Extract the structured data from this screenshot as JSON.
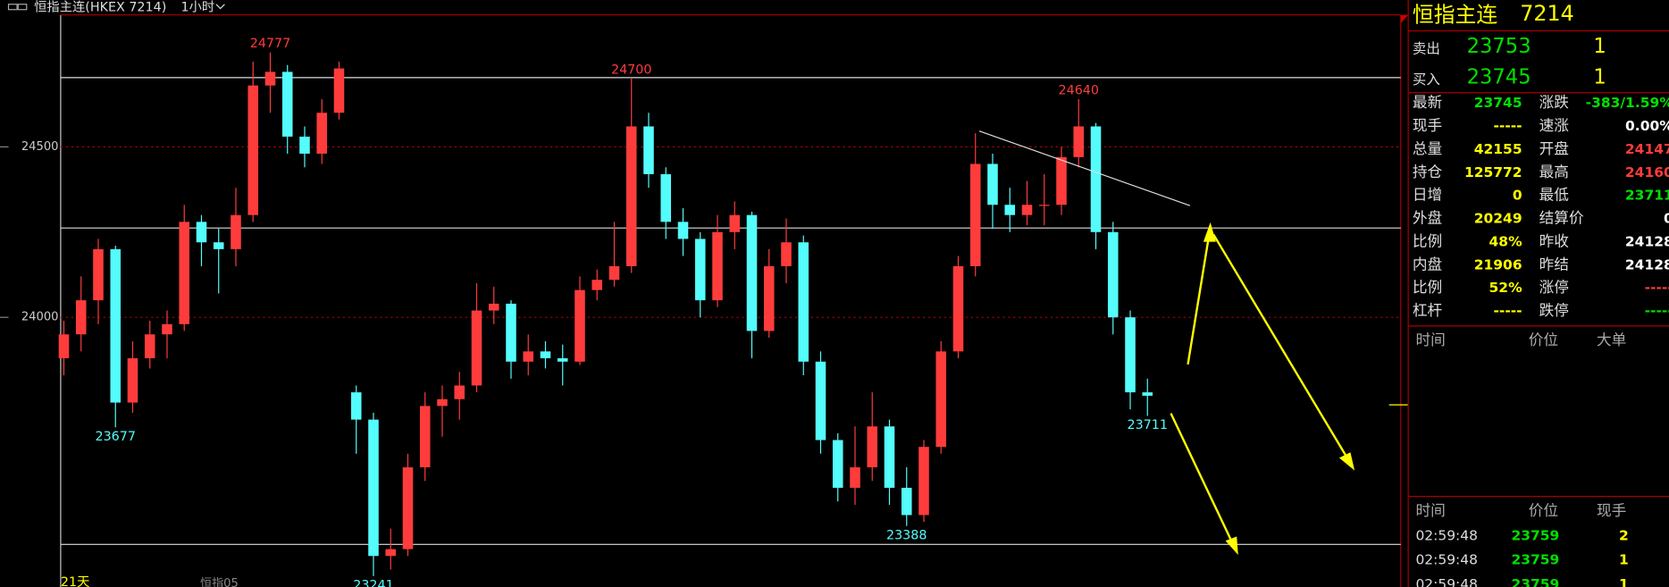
{
  "header": {
    "title": "恒指主连(HKEX 7214)",
    "period": "1小时"
  },
  "chart_data": {
    "type": "candlestick",
    "up_color": "#ff3c3c",
    "down_color": "#54fcfc",
    "ylim": [
      23209,
      24887
    ],
    "yticks": [
      24000,
      24500
    ],
    "grid": true,
    "open": [
      23880,
      23950,
      24050,
      24200,
      23750,
      23880,
      23950,
      23980,
      24280,
      24220,
      24200,
      24300,
      24680,
      24720,
      24530,
      24480,
      24600,
      23780,
      23700,
      23300,
      23320,
      23560,
      23740,
      23760,
      23800,
      24020,
      24040,
      23870,
      23900,
      23880,
      23870,
      24080,
      24110,
      24150,
      24560,
      24420,
      24280,
      24230,
      24050,
      24250,
      24300,
      23960,
      24150,
      24220,
      23870,
      23640,
      23500,
      23560,
      23680,
      23500,
      23420,
      23620,
      23900,
      24150,
      24450,
      24330,
      24300,
      24330,
      24330,
      24470,
      24560,
      24250,
      24000,
      23780
    ],
    "high": [
      23990,
      24120,
      24230,
      24210,
      23930,
      23990,
      24020,
      24330,
      24300,
      24260,
      24380,
      24750,
      24777,
      24740,
      24560,
      24640,
      24750,
      23800,
      23720,
      23380,
      23600,
      23780,
      23800,
      23840,
      24100,
      24090,
      24050,
      23950,
      23930,
      23920,
      24120,
      24140,
      24280,
      24700,
      24600,
      24440,
      24320,
      24250,
      24300,
      24340,
      24310,
      24200,
      24290,
      24240,
      23900,
      23660,
      23680,
      23780,
      23700,
      23560,
      23640,
      23930,
      24180,
      24540,
      24480,
      24380,
      24400,
      24420,
      24500,
      24640,
      24570,
      24280,
      24020,
      23820
    ],
    "low": [
      23830,
      23900,
      23980,
      23677,
      23720,
      23850,
      23880,
      23960,
      24150,
      24070,
      24150,
      24280,
      24600,
      24480,
      24440,
      24450,
      24580,
      23600,
      23241,
      23260,
      23300,
      23520,
      23650,
      23700,
      23780,
      23980,
      23820,
      23830,
      23850,
      23800,
      23860,
      24050,
      24090,
      24130,
      24380,
      24230,
      24180,
      24000,
      24030,
      24200,
      23880,
      23940,
      24100,
      23830,
      23600,
      23460,
      23450,
      23520,
      23450,
      23388,
      23400,
      23600,
      23880,
      24120,
      24260,
      24250,
      24270,
      24270,
      24300,
      24440,
      24200,
      23950,
      23730,
      23711
    ],
    "close": [
      23950,
      24050,
      24200,
      23750,
      23880,
      23950,
      23980,
      24280,
      24220,
      24200,
      24300,
      24680,
      24720,
      24530,
      24480,
      24600,
      24730,
      23700,
      23300,
      23320,
      23560,
      23740,
      23760,
      23800,
      24020,
      24040,
      23870,
      23900,
      23880,
      23870,
      24080,
      24110,
      24150,
      24560,
      24420,
      24280,
      24230,
      24050,
      24250,
      24300,
      23960,
      24150,
      24220,
      23870,
      23640,
      23500,
      23560,
      23680,
      23500,
      23420,
      23620,
      23900,
      24150,
      24450,
      24330,
      24300,
      24330,
      24330,
      24470,
      24560,
      24250,
      24000,
      23780,
      23770
    ],
    "hlines": [
      24703,
      24262,
      23334
    ],
    "annotations": [
      {
        "value": 24777,
        "index": 12,
        "position": "above"
      },
      {
        "value": 24700,
        "index": 33,
        "position": "above"
      },
      {
        "value": 24640,
        "index": 59,
        "position": "above"
      },
      {
        "value": 23677,
        "index": 3,
        "position": "below"
      },
      {
        "value": 23241,
        "index": 18,
        "position": "below"
      },
      {
        "value": 23388,
        "index": 49,
        "position": "below"
      },
      {
        "value": 23711,
        "index": 63,
        "position": "below"
      }
    ],
    "footer_left": "21天",
    "footer_mid": "恒指05"
  },
  "quote_panel": {
    "name": "恒指主连",
    "code": "7214",
    "ask": {
      "label": "卖出",
      "price": "23753",
      "size": "1"
    },
    "bid": {
      "label": "买入",
      "price": "23745",
      "size": "1"
    },
    "stats": [
      [
        {
          "label": "最新",
          "value": "23745",
          "color": "#00e000"
        },
        {
          "label": "涨跌",
          "value": "-383/1.59%",
          "color": "#00e000"
        }
      ],
      [
        {
          "label": "现手",
          "value": "-----",
          "color": "#ffff00"
        },
        {
          "label": "速涨",
          "value": "0.00%",
          "color": "#ffffff"
        }
      ],
      [
        {
          "label": "总量",
          "value": "42155",
          "color": "#ffff00"
        },
        {
          "label": "开盘",
          "value": "24147",
          "color": "#ff3c3c"
        }
      ],
      [
        {
          "label": "持仓",
          "value": "125772",
          "color": "#ffff00"
        },
        {
          "label": "最高",
          "value": "24160",
          "color": "#ff3c3c"
        }
      ],
      [
        {
          "label": "日增",
          "value": "0",
          "color": "#ffff00"
        },
        {
          "label": "最低",
          "value": "23711",
          "color": "#00e000"
        }
      ],
      [
        {
          "label": "外盘",
          "value": "20249",
          "color": "#ffff00"
        },
        {
          "label": "结算价",
          "value": "0",
          "color": "#ffffff"
        }
      ],
      [
        {
          "label": "比例",
          "value": "48%",
          "color": "#ffff00"
        },
        {
          "label": "昨收",
          "value": "24128",
          "color": "#ffffff"
        }
      ],
      [
        {
          "label": "内盘",
          "value": "21906",
          "color": "#ffff00"
        },
        {
          "label": "昨结",
          "value": "24128",
          "color": "#ffffff"
        }
      ],
      [
        {
          "label": "比例",
          "value": "52%",
          "color": "#ffff00"
        },
        {
          "label": "涨停",
          "value": "-----",
          "color": "#ff3c3c"
        }
      ],
      [
        {
          "label": "杠杆",
          "value": "-----",
          "color": "#ffff00"
        },
        {
          "label": "跌停",
          "value": "-----",
          "color": "#00e000"
        }
      ]
    ],
    "big_orders_header": [
      "时间",
      "价位",
      "大单"
    ],
    "ticks_header": [
      "时间",
      "价位",
      "现手"
    ],
    "ticks": [
      [
        "02:59:48",
        "23759",
        "2"
      ],
      [
        "02:59:48",
        "23759",
        "1"
      ],
      [
        "02:59:48",
        "23759",
        "1"
      ]
    ]
  }
}
